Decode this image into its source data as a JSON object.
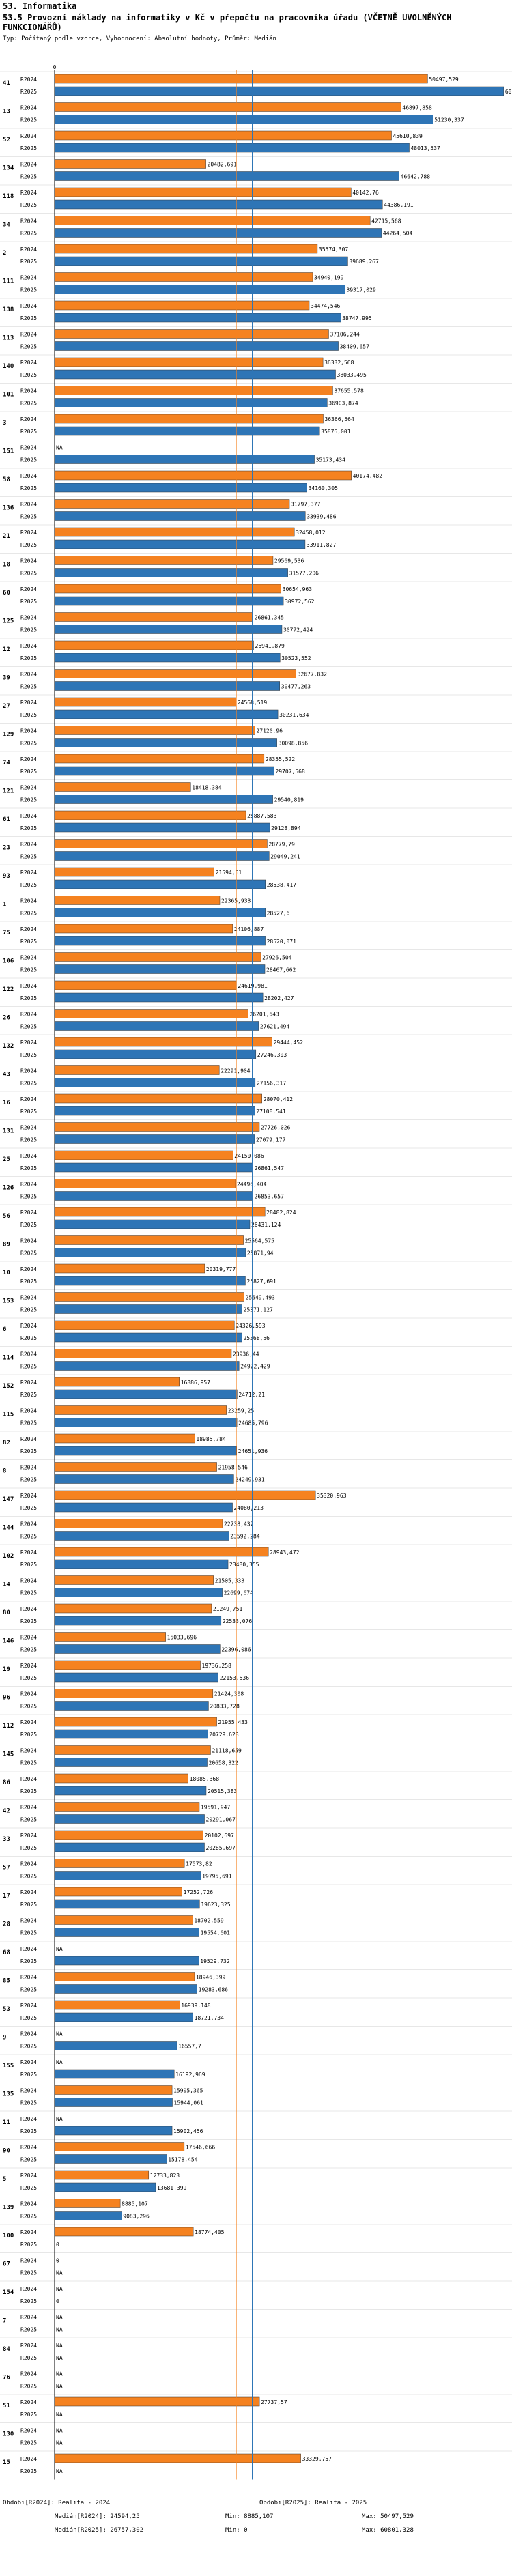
{
  "header": {
    "section": "53. Informatika",
    "title": "53.5 Provozní náklady na informatiky v Kč v přepočtu na pracovníka úřadu (VČETNĚ UVOLNĚNÝCH FUNKCIONÁŘŮ)",
    "subtitle": "Typ: Počítaný podle vzorce, Vyhodnocení: Absolutní hodnoty, Průměr: Medián"
  },
  "colors": {
    "r2024": "#f58220",
    "r2025": "#2e75b6",
    "median2024": "#f58220",
    "median2025": "#2e75b6"
  },
  "chart_data": {
    "type": "bar",
    "orientation": "horizontal",
    "series_names": [
      "R2024",
      "R2025"
    ],
    "axis_zero_label": "0",
    "xlim": [
      0,
      61000
    ],
    "medians": {
      "R2024": 24594.25,
      "R2025": 26757.302
    },
    "groups": [
      {
        "id": "41",
        "r2024": "50497,529",
        "r2025": "60801,328"
      },
      {
        "id": "13",
        "r2024": "46897,858",
        "r2025": "51230,337"
      },
      {
        "id": "52",
        "r2024": "45610,839",
        "r2025": "48013,537"
      },
      {
        "id": "134",
        "r2024": "20482,691",
        "r2025": "46642,788"
      },
      {
        "id": "118",
        "r2024": "40142,76",
        "r2025": "44386,191"
      },
      {
        "id": "34",
        "r2024": "42715,568",
        "r2025": "44264,504"
      },
      {
        "id": "2",
        "r2024": "35574,307",
        "r2025": "39689,267"
      },
      {
        "id": "111",
        "r2024": "34940,199",
        "r2025": "39317,029"
      },
      {
        "id": "138",
        "r2024": "34474,546",
        "r2025": "38747,995"
      },
      {
        "id": "113",
        "r2024": "37106,244",
        "r2025": "38409,657"
      },
      {
        "id": "140",
        "r2024": "36332,568",
        "r2025": "38033,495"
      },
      {
        "id": "101",
        "r2024": "37655,578",
        "r2025": "36903,874"
      },
      {
        "id": "3",
        "r2024": "36366,564",
        "r2025": "35876,001"
      },
      {
        "id": "151",
        "r2024": "NA",
        "r2025": "35173,434"
      },
      {
        "id": "58",
        "r2024": "40174,482",
        "r2025": "34160,305"
      },
      {
        "id": "136",
        "r2024": "31797,377",
        "r2025": "33939,486"
      },
      {
        "id": "21",
        "r2024": "32458,012",
        "r2025": "33911,827"
      },
      {
        "id": "18",
        "r2024": "29569,536",
        "r2025": "31577,206"
      },
      {
        "id": "60",
        "r2024": "30654,963",
        "r2025": "30972,562"
      },
      {
        "id": "125",
        "r2024": "26861,345",
        "r2025": "30772,424"
      },
      {
        "id": "12",
        "r2024": "26941,879",
        "r2025": "30523,552"
      },
      {
        "id": "39",
        "r2024": "32677,832",
        "r2025": "30477,263"
      },
      {
        "id": "27",
        "r2024": "24568,519",
        "r2025": "30231,634"
      },
      {
        "id": "129",
        "r2024": "27120,96",
        "r2025": "30098,856"
      },
      {
        "id": "74",
        "r2024": "28355,522",
        "r2025": "29707,568"
      },
      {
        "id": "121",
        "r2024": "18418,384",
        "r2025": "29540,819"
      },
      {
        "id": "61",
        "r2024": "25887,583",
        "r2025": "29128,894"
      },
      {
        "id": "23",
        "r2024": "28779,79",
        "r2025": "29049,241"
      },
      {
        "id": "93",
        "r2024": "21594,61",
        "r2025": "28538,417"
      },
      {
        "id": "1",
        "r2024": "22365,933",
        "r2025": "28527,6"
      },
      {
        "id": "75",
        "r2024": "24106,887",
        "r2025": "28520,071"
      },
      {
        "id": "106",
        "r2024": "27926,504",
        "r2025": "28467,662"
      },
      {
        "id": "122",
        "r2024": "24619,981",
        "r2025": "28202,427"
      },
      {
        "id": "26",
        "r2024": "26201,643",
        "r2025": "27621,494"
      },
      {
        "id": "132",
        "r2024": "29444,452",
        "r2025": "27246,303"
      },
      {
        "id": "43",
        "r2024": "22291,904",
        "r2025": "27156,317"
      },
      {
        "id": "16",
        "r2024": "28070,412",
        "r2025": "27108,541"
      },
      {
        "id": "131",
        "r2024": "27726,026",
        "r2025": "27079,177"
      },
      {
        "id": "25",
        "r2024": "24150,086",
        "r2025": "26861,547"
      },
      {
        "id": "126",
        "r2024": "24496,404",
        "r2025": "26853,657"
      },
      {
        "id": "56",
        "r2024": "28482,824",
        "r2025": "26431,124"
      },
      {
        "id": "89",
        "r2024": "25564,575",
        "r2025": "25871,94"
      },
      {
        "id": "10",
        "r2024": "20319,777",
        "r2025": "25827,691"
      },
      {
        "id": "153",
        "r2024": "25649,493",
        "r2025": "25371,127"
      },
      {
        "id": "6",
        "r2024": "24326,593",
        "r2025": "25368,56"
      },
      {
        "id": "114",
        "r2024": "23936,44",
        "r2025": "24972,429"
      },
      {
        "id": "152",
        "r2024": "16886,957",
        "r2025": "24712,21"
      },
      {
        "id": "115",
        "r2024": "23259,25",
        "r2025": "24685,796"
      },
      {
        "id": "82",
        "r2024": "18985,784",
        "r2025": "24651,936"
      },
      {
        "id": "8",
        "r2024": "21958,546",
        "r2025": "24249,931"
      },
      {
        "id": "147",
        "r2024": "35320,963",
        "r2025": "24080,213"
      },
      {
        "id": "144",
        "r2024": "22738,437",
        "r2025": "23592,284"
      },
      {
        "id": "102",
        "r2024": "28943,472",
        "r2025": "23480,355"
      },
      {
        "id": "14",
        "r2024": "21505,333",
        "r2025": "22699,674"
      },
      {
        "id": "80",
        "r2024": "21249,751",
        "r2025": "22533,076"
      },
      {
        "id": "146",
        "r2024": "15033,696",
        "r2025": "22396,086"
      },
      {
        "id": "19",
        "r2024": "19736,258",
        "r2025": "22153,536"
      },
      {
        "id": "96",
        "r2024": "21424,308",
        "r2025": "20833,728"
      },
      {
        "id": "112",
        "r2024": "21955,433",
        "r2025": "20729,628"
      },
      {
        "id": "145",
        "r2024": "21118,659",
        "r2025": "20658,322"
      },
      {
        "id": "86",
        "r2024": "18085,368",
        "r2025": "20515,383"
      },
      {
        "id": "42",
        "r2024": "19591,947",
        "r2025": "20291,067"
      },
      {
        "id": "33",
        "r2024": "20102,697",
        "r2025": "20285,697"
      },
      {
        "id": "57",
        "r2024": "17573,82",
        "r2025": "19795,691"
      },
      {
        "id": "17",
        "r2024": "17252,726",
        "r2025": "19623,325"
      },
      {
        "id": "28",
        "r2024": "18702,559",
        "r2025": "19554,601"
      },
      {
        "id": "68",
        "r2024": "NA",
        "r2025": "19529,732"
      },
      {
        "id": "85",
        "r2024": "18946,399",
        "r2025": "19283,686"
      },
      {
        "id": "53",
        "r2024": "16939,148",
        "r2025": "18721,734"
      },
      {
        "id": "9",
        "r2024": "NA",
        "r2025": "16557,7"
      },
      {
        "id": "155",
        "r2024": "NA",
        "r2025": "16192,969"
      },
      {
        "id": "135",
        "r2024": "15905,365",
        "r2025": "15944,061"
      },
      {
        "id": "11",
        "r2024": "NA",
        "r2025": "15902,456"
      },
      {
        "id": "90",
        "r2024": "17546,666",
        "r2025": "15178,454"
      },
      {
        "id": "5",
        "r2024": "12733,823",
        "r2025": "13681,399"
      },
      {
        "id": "139",
        "r2024": "8885,107",
        "r2025": "9083,296"
      },
      {
        "id": "100",
        "r2024": "18774,405",
        "r2025": "0"
      },
      {
        "id": "67",
        "r2024": "0",
        "r2025": "NA"
      },
      {
        "id": "154",
        "r2024": "NA",
        "r2025": "0"
      },
      {
        "id": "7",
        "r2024": "NA",
        "r2025": "NA"
      },
      {
        "id": "84",
        "r2024": "NA",
        "r2025": "NA"
      },
      {
        "id": "76",
        "r2024": "NA",
        "r2025": "NA"
      },
      {
        "id": "51",
        "r2024": "27737,57",
        "r2025": "NA"
      },
      {
        "id": "130",
        "r2024": "NA",
        "r2025": "NA"
      },
      {
        "id": "15",
        "r2024": "33329,757",
        "r2025": "NA"
      }
    ]
  },
  "footer": {
    "count_2024": "Obdobi[R2024]: Realita - 2024",
    "count_2025": "Obdobi[R2025]: Realita - 2025",
    "median_2024": "Medián[R2024]: 24594,25",
    "median_2025": "Medián[R2025]: 26757,302",
    "min_label": "Min: 8885,107",
    "min_label_2": "Min: 0",
    "max_label": "Max: 50497,529",
    "max_label_2": "Max: 60801,328"
  }
}
